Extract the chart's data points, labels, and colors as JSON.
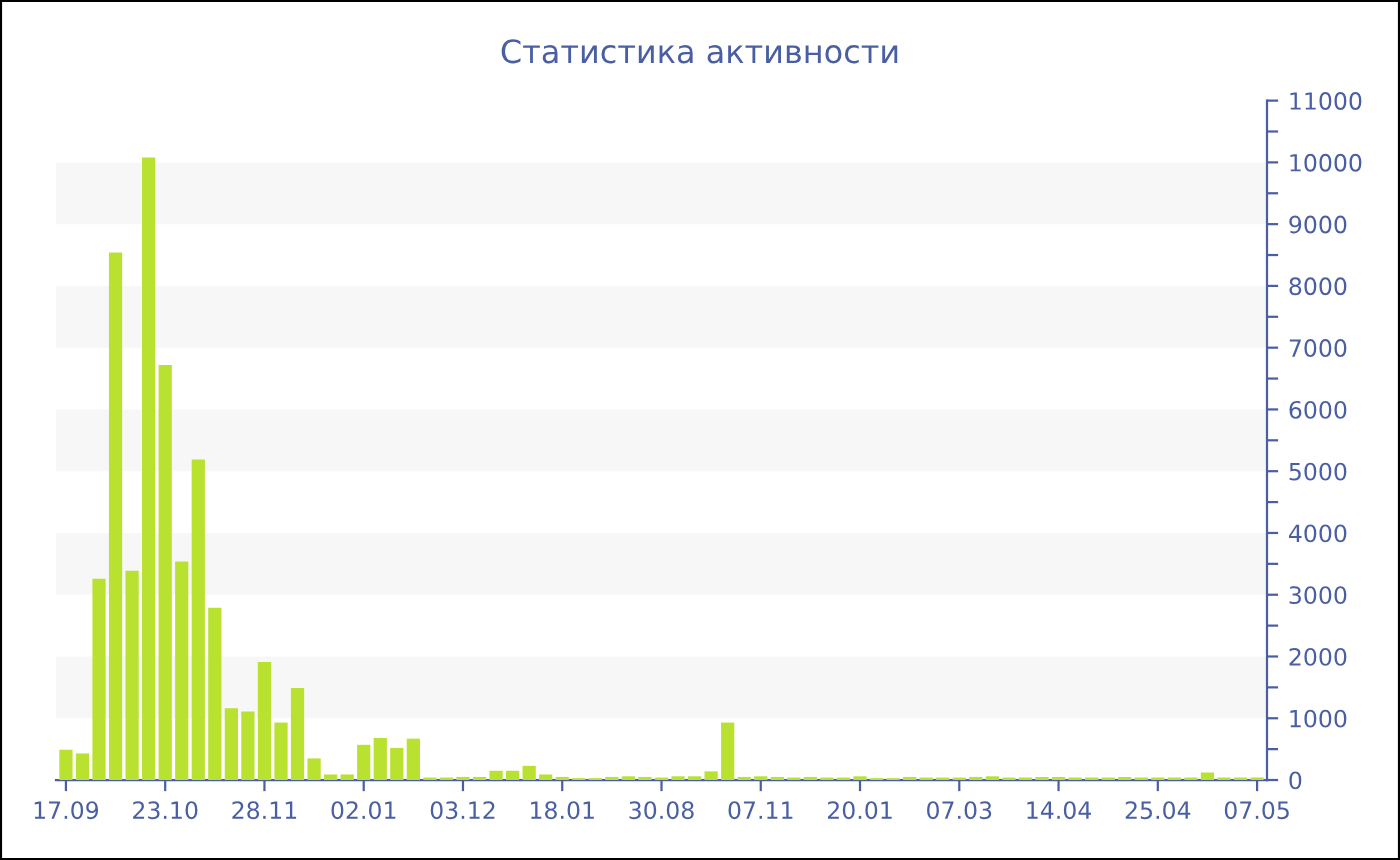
{
  "chart_data": {
    "type": "bar",
    "title": "Статистика активности",
    "categories": [
      "17.09",
      null,
      null,
      null,
      null,
      null,
      "23.10",
      null,
      null,
      null,
      null,
      null,
      "28.11",
      null,
      null,
      null,
      null,
      null,
      "02.01",
      null,
      null,
      null,
      null,
      null,
      "03.12",
      null,
      null,
      null,
      null,
      null,
      "18.01",
      null,
      null,
      null,
      null,
      null,
      "30.08",
      null,
      null,
      null,
      null,
      null,
      "07.11",
      null,
      null,
      null,
      null,
      null,
      "20.01",
      null,
      null,
      null,
      null,
      null,
      "07.03",
      null,
      null,
      null,
      null,
      null,
      "14.04",
      null,
      null,
      null,
      null,
      null,
      "25.04",
      null,
      null,
      null,
      null,
      null,
      "07.05"
    ],
    "values": [
      490,
      430,
      3260,
      8540,
      3390,
      10080,
      6720,
      3540,
      5190,
      2790,
      1160,
      1110,
      1910,
      930,
      1490,
      350,
      90,
      90,
      570,
      680,
      520,
      670,
      40,
      40,
      50,
      50,
      150,
      150,
      230,
      90,
      50,
      30,
      30,
      50,
      60,
      50,
      40,
      60,
      60,
      140,
      930,
      50,
      60,
      50,
      40,
      50,
      40,
      40,
      60,
      30,
      30,
      50,
      40,
      40,
      40,
      50,
      60,
      40,
      40,
      50,
      50,
      40,
      40,
      40,
      50,
      40,
      40,
      40,
      40,
      120,
      40,
      40,
      40
    ],
    "color": "#b9e12f",
    "ylim": [
      0,
      11000
    ],
    "yticks": [
      0,
      {
        "value": 500,
        "label": null
      },
      1000,
      {
        "value": 1500,
        "label": null
      },
      2000,
      {
        "value": 2500,
        "label": null
      },
      3000,
      {
        "value": 3500,
        "label": null
      },
      4000,
      {
        "value": 4500,
        "label": null
      },
      5000,
      {
        "value": 5500,
        "label": null
      },
      6000,
      {
        "value": 6500,
        "label": null
      },
      7000,
      {
        "value": 7500,
        "label": null
      },
      8000,
      {
        "value": 8500,
        "label": null
      },
      9000,
      {
        "value": 9500,
        "label": null
      },
      10000,
      {
        "value": 10500,
        "label": null
      },
      11000
    ],
    "bands": [
      {
        "axis": "y",
        "from": 1000,
        "to": 2000,
        "color": "#f7f7f7"
      },
      {
        "axis": "y",
        "from": 3000,
        "to": 4000,
        "color": "#f7f7f7"
      },
      {
        "axis": "y",
        "from": 5000,
        "to": 6000,
        "color": "#f7f7f7"
      },
      {
        "axis": "y",
        "from": 7000,
        "to": 8000,
        "color": "#f7f7f7"
      },
      {
        "axis": "y",
        "from": 9000,
        "to": 10000,
        "color": "#f7f7f7"
      }
    ]
  }
}
